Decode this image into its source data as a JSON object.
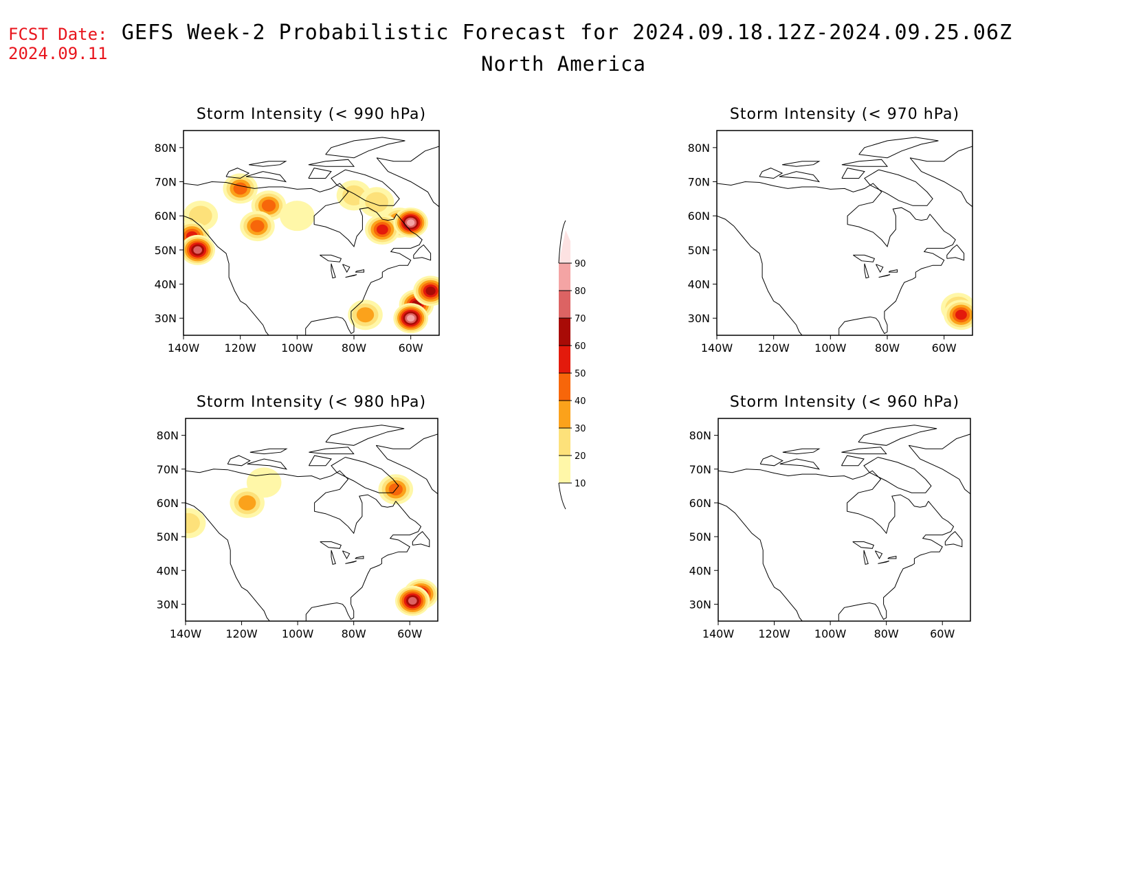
{
  "header": {
    "fcst_label": "FCST Date:",
    "fcst_date": "2024.09.11",
    "title": "GEFS Week-2 Probabilistic Forecast for 2024.09.18.12Z-2024.09.25.06Z",
    "subtitle": "North America"
  },
  "colorbar": {
    "levels": [
      "10",
      "20",
      "30",
      "40",
      "50",
      "60",
      "70",
      "80",
      "90"
    ],
    "colors": [
      "#fff7a8",
      "#fde17a",
      "#fba21b",
      "#f7660a",
      "#e31a0c",
      "#a80b06",
      "#dc6363",
      "#f4a4a4",
      "#fde2e2"
    ]
  },
  "panels": [
    {
      "title": "Storm Intensity (< 990 hPa)",
      "lat_labels": [
        "80N",
        "70N",
        "60N",
        "50N",
        "40N",
        "30N"
      ],
      "lon_labels": [
        "140W",
        "120W",
        "100W",
        "80W",
        "60W"
      ],
      "regions": [
        {
          "lon": -134,
          "lat": 60,
          "prob": 20
        },
        {
          "lon": -137,
          "lat": 54,
          "prob": 55
        },
        {
          "lon": -135,
          "lat": 50,
          "prob": 70
        },
        {
          "lon": -110,
          "lat": 63,
          "prob": 40
        },
        {
          "lon": -114,
          "lat": 57,
          "prob": 45
        },
        {
          "lon": -120,
          "lat": 68,
          "prob": 45
        },
        {
          "lon": -100,
          "lat": 60,
          "prob": 15
        },
        {
          "lon": -80,
          "lat": 66,
          "prob": 25
        },
        {
          "lon": -72,
          "lat": 64,
          "prob": 25
        },
        {
          "lon": -64,
          "lat": 58,
          "prob": 55
        },
        {
          "lon": -70,
          "lat": 56,
          "prob": 50
        },
        {
          "lon": -60,
          "lat": 58,
          "prob": 85
        },
        {
          "lon": -58,
          "lat": 34,
          "prob": 65
        },
        {
          "lon": -60,
          "lat": 30,
          "prob": 88
        },
        {
          "lon": -53,
          "lat": 38,
          "prob": 60
        },
        {
          "lon": -76,
          "lat": 31,
          "prob": 30
        }
      ]
    },
    {
      "title": "Storm Intensity (< 970 hPa)",
      "lat_labels": [
        "80N",
        "70N",
        "60N",
        "50N",
        "40N",
        "30N"
      ],
      "lon_labels": [
        "140W",
        "120W",
        "100W",
        "80W",
        "60W"
      ],
      "regions": [
        {
          "lon": -55,
          "lat": 33,
          "prob": 30
        },
        {
          "lon": -54,
          "lat": 31,
          "prob": 55
        }
      ]
    },
    {
      "title": "Storm Intensity (< 980 hPa)",
      "lat_labels": [
        "80N",
        "70N",
        "60N",
        "50N",
        "40N",
        "30N"
      ],
      "lon_labels": [
        "140W",
        "120W",
        "100W",
        "80W",
        "60W"
      ],
      "regions": [
        {
          "lon": -139,
          "lat": 54,
          "prob": 25
        },
        {
          "lon": -112,
          "lat": 66,
          "prob": 15
        },
        {
          "lon": -118,
          "lat": 60,
          "prob": 35
        },
        {
          "lon": -65,
          "lat": 64,
          "prob": 45
        },
        {
          "lon": -56,
          "lat": 33,
          "prob": 60
        },
        {
          "lon": -59,
          "lat": 31,
          "prob": 75
        }
      ]
    },
    {
      "title": "Storm Intensity (< 960 hPa)",
      "lat_labels": [
        "80N",
        "70N",
        "60N",
        "50N",
        "40N",
        "30N"
      ],
      "lon_labels": [
        "140W",
        "120W",
        "100W",
        "80W",
        "60W"
      ],
      "regions": []
    }
  ]
}
